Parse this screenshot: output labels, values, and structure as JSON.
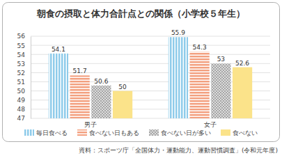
{
  "chart_data": {
    "type": "bar",
    "title": "朝食の摂取と体力合計点との関係（小学校５年生）",
    "categories": [
      "男子",
      "女子"
    ],
    "series": [
      {
        "name": "毎日食べる",
        "color": "#8ecbea",
        "values": [
          54.1,
          55.9
        ]
      },
      {
        "name": "食べない日もある",
        "color": "#f3a07f",
        "values": [
          51.7,
          54.3
        ]
      },
      {
        "name": "食べない日が多い",
        "color": "#a6a6a6",
        "values": [
          50.6,
          53
        ]
      },
      {
        "name": "食べない",
        "color": "#fbe38a",
        "values": [
          50,
          52.6
        ]
      }
    ],
    "ylim": [
      47,
      56
    ],
    "yticks": [
      47,
      48,
      49,
      50,
      51,
      52,
      53,
      54,
      55,
      56
    ],
    "grid": true,
    "data_labels": true,
    "legend": "bottom",
    "source": "資料：スポーツ庁「全国体力・運動能力、運動習慣調査」(令和元年度)"
  }
}
